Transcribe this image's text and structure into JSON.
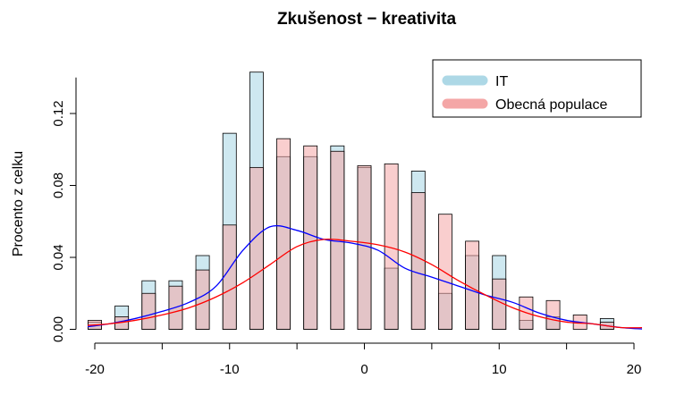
{
  "chart_data": {
    "type": "bar",
    "title": "Zkušenost − kreativita",
    "xlabel": "",
    "ylabel": "Procento z celku",
    "xlim": [
      -20.5,
      20.5
    ],
    "ylim": [
      0,
      0.14
    ],
    "x_ticks": [
      "-20",
      "-10",
      "0",
      "10",
      "20"
    ],
    "y_ticks": [
      "0.00",
      "0.04",
      "0.08",
      "0.12"
    ],
    "grid": false,
    "legend_position": "top-right",
    "bin_width": 2,
    "bar_width": 1,
    "bin_centers": [
      -20,
      -18,
      -16,
      -14,
      -12,
      -10,
      -8,
      -6,
      -4,
      -2,
      0,
      2,
      4,
      6,
      8,
      10,
      12,
      14,
      16,
      18
    ],
    "series": [
      {
        "name": "IT",
        "fill_color": "#add8e6",
        "line_color": "#0000ff",
        "values": [
          0.004,
          0.013,
          0.027,
          0.027,
          0.041,
          0.109,
          0.143,
          0.096,
          0.096,
          0.102,
          0.09,
          0.034,
          0.088,
          0.02,
          0.041,
          0.041,
          0.005,
          0.007,
          0.0,
          0.006
        ],
        "density_x": [
          -21,
          -19,
          -17,
          -15,
          -13,
          -11,
          -9,
          -7,
          -5,
          -3,
          -1,
          1,
          3,
          5,
          7,
          9,
          11,
          13,
          15,
          17,
          19,
          21
        ],
        "density_y": [
          0.001,
          0.003,
          0.006,
          0.01,
          0.015,
          0.024,
          0.044,
          0.057,
          0.055,
          0.05,
          0.048,
          0.044,
          0.034,
          0.029,
          0.024,
          0.019,
          0.015,
          0.009,
          0.005,
          0.003,
          0.001,
          0.0
        ]
      },
      {
        "name": "Obecná populace",
        "fill_color": "#f4a6a6",
        "line_color": "#ff0000",
        "values": [
          0.005,
          0.007,
          0.02,
          0.024,
          0.033,
          0.058,
          0.09,
          0.106,
          0.102,
          0.099,
          0.091,
          0.092,
          0.076,
          0.064,
          0.049,
          0.028,
          0.018,
          0.016,
          0.008,
          0.004
        ],
        "density_x": [
          -21,
          -19,
          -17,
          -15,
          -13,
          -11,
          -9,
          -7,
          -5,
          -3,
          -1,
          1,
          3,
          5,
          7,
          9,
          11,
          13,
          15,
          17,
          19,
          21
        ],
        "density_y": [
          0.002,
          0.003,
          0.005,
          0.008,
          0.012,
          0.018,
          0.026,
          0.036,
          0.046,
          0.05,
          0.049,
          0.047,
          0.043,
          0.036,
          0.027,
          0.019,
          0.012,
          0.007,
          0.004,
          0.003,
          0.001,
          0.001
        ]
      }
    ]
  }
}
